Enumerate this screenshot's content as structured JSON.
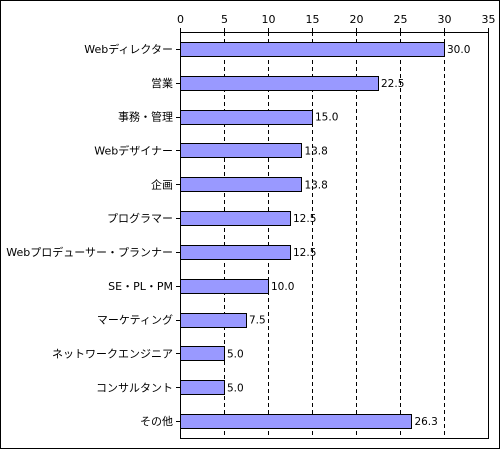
{
  "chart_data": {
    "type": "bar",
    "orientation": "horizontal",
    "title": "",
    "xlabel": "",
    "ylabel": "",
    "xlim": [
      0,
      35
    ],
    "ticks": [
      0,
      5,
      10,
      15,
      20,
      25,
      30,
      35
    ],
    "tick_labels": [
      "0",
      "5",
      "10",
      "15",
      "20",
      "25",
      "30",
      "35"
    ],
    "grid": "vertical dashed",
    "legend": "none",
    "categories": [
      "Webディレクター",
      "営業",
      "事務・管理",
      "Webデザイナー",
      "企画",
      "プログラマー",
      "Webプロデューサー・プランナー",
      "SE・PL・PM",
      "マーケティング",
      "ネットワークエンジニア",
      "コンサルタント",
      "その他"
    ],
    "values": [
      30.0,
      22.5,
      15.0,
      13.8,
      13.8,
      12.5,
      12.5,
      10.0,
      7.5,
      5.0,
      5.0,
      26.3
    ],
    "value_labels": [
      "30.0",
      "22.5",
      "15.0",
      "13.8",
      "13.8",
      "12.5",
      "12.5",
      "10.0",
      "7.5",
      "5.0",
      "5.0",
      "26.3"
    ],
    "colors": {
      "bar": "#9999ff",
      "bar_stroke": "#000000",
      "grid": "#000000",
      "axis": "#000000"
    }
  }
}
